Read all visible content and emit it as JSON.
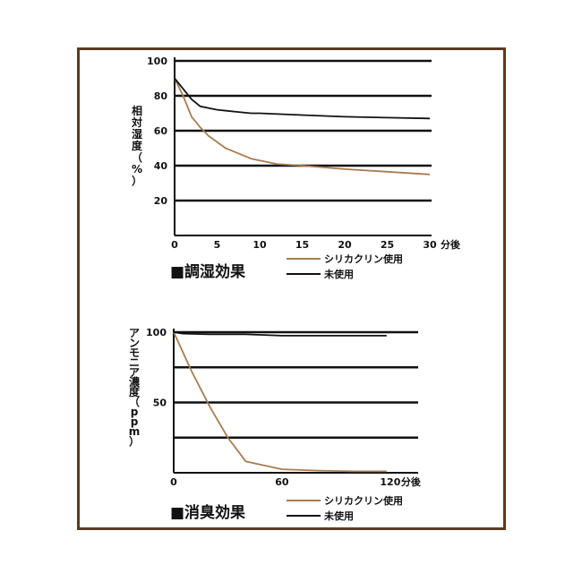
{
  "chart_data": [
    {
      "type": "line",
      "title": "■調湿効果",
      "ylabel": "相対湿度（%）",
      "xunit": "分後",
      "x_ticks": [
        "0",
        "5",
        "10",
        "15",
        "20",
        "25",
        "30"
      ],
      "y_ticks": [
        "20",
        "40",
        "60",
        "80",
        "100"
      ],
      "xlim": [
        0,
        30
      ],
      "ylim": [
        0,
        100
      ],
      "grid": true,
      "legend_position": "below-right",
      "series": [
        {
          "name": "シリカクリン使用",
          "color": "#a87c4f",
          "x": [
            0,
            1,
            2,
            3,
            4,
            6,
            9,
            12,
            15,
            20,
            25,
            30
          ],
          "y": [
            90,
            80,
            68,
            62,
            57,
            50,
            44,
            41,
            40,
            38,
            36.5,
            35
          ]
        },
        {
          "name": "未使用",
          "color": "#111111",
          "x": [
            0,
            1,
            2,
            3,
            5,
            7,
            9,
            10,
            15,
            20,
            25,
            30
          ],
          "y": [
            90,
            84,
            78,
            74,
            72,
            71,
            70,
            70,
            69,
            68,
            67.5,
            67
          ]
        }
      ]
    },
    {
      "type": "line",
      "title": "■消臭効果",
      "ylabel": "アンモニア濃度（ppm）",
      "xunit": "分後",
      "x_ticks": [
        "0",
        "60",
        "120"
      ],
      "y_ticks": [
        "50",
        "100"
      ],
      "xlim": [
        0,
        128
      ],
      "ylim": [
        0,
        100
      ],
      "grid": true,
      "legend_position": "below-right",
      "series": [
        {
          "name": "シリカクリン使用",
          "color": "#a87c4f",
          "x": [
            0,
            10,
            20,
            30,
            40,
            60,
            80,
            100,
            118
          ],
          "y": [
            100,
            72,
            47,
            25,
            8,
            2.5,
            1.5,
            1,
            1
          ]
        },
        {
          "name": "未使用",
          "color": "#111111",
          "x": [
            0,
            5,
            20,
            40,
            60,
            80,
            100,
            118
          ],
          "y": [
            100,
            99,
            98.5,
            98.5,
            97.5,
            97.5,
            97.5,
            97.5
          ]
        }
      ]
    }
  ]
}
